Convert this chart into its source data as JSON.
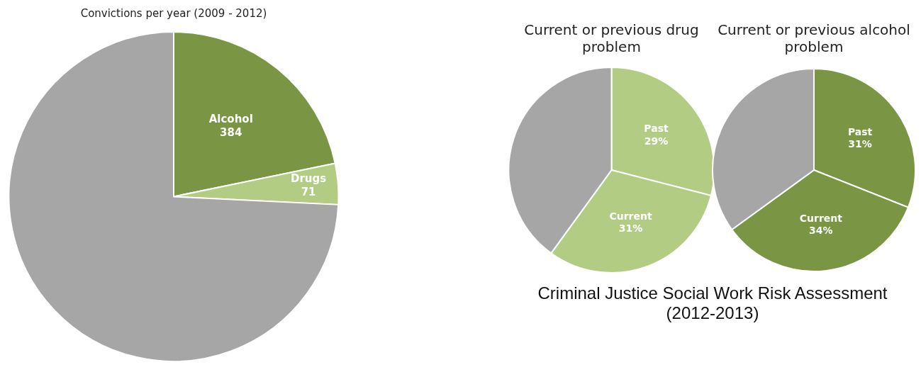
{
  "chart_data": [
    {
      "type": "pie",
      "title": "Convictions per year (2009 - 2012)",
      "categories": [
        "Alcohol",
        "Drugs",
        null
      ],
      "values": [
        384,
        71,
        1310
      ],
      "value_labels": [
        "384",
        "71",
        null
      ],
      "colors": [
        "#7a9645",
        "#b3cc84",
        "#a6a6a6"
      ]
    },
    {
      "type": "pie",
      "title": "Current or previous drug problem",
      "categories": [
        "Past",
        "Current",
        null
      ],
      "values": [
        29,
        31,
        40
      ],
      "value_labels": [
        "29%",
        "31%",
        null
      ],
      "colors": [
        "#b3cc84",
        "#b3cc84",
        "#a6a6a6"
      ]
    },
    {
      "type": "pie",
      "title": "Current or previous alcohol problem",
      "categories": [
        "Past",
        "Current",
        null
      ],
      "values": [
        31,
        34,
        35
      ],
      "value_labels": [
        "31%",
        "34%",
        null
      ],
      "colors": [
        "#7a9645",
        "#7a9645",
        "#a6a6a6"
      ],
      "annotations": [
        "Criminal Justice Social Work Risk Assessment (2012-2013)"
      ]
    }
  ]
}
